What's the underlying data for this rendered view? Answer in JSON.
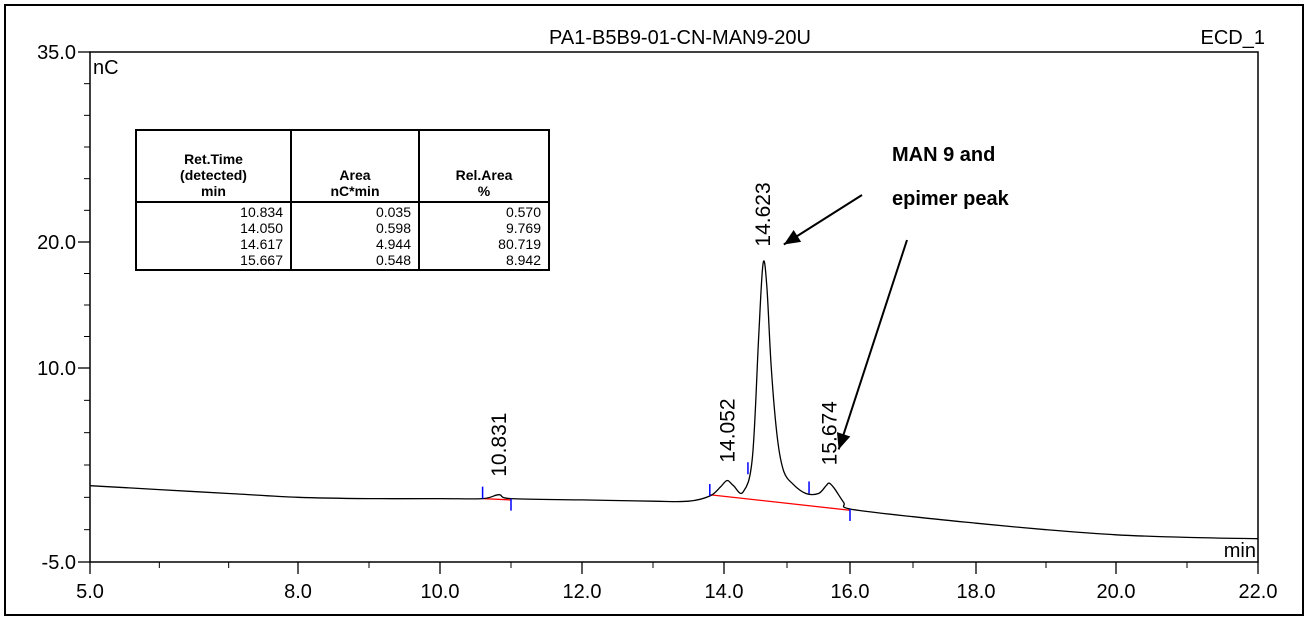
{
  "chart_data": {
    "type": "line",
    "title": "PA1-B5B9-01-CN-MAN9-20U",
    "channel": "ECD_1",
    "xlabel": "min",
    "ylabel": "nC",
    "xlim": [
      5.0,
      22.0
    ],
    "ylim": [
      -5.0,
      35.0
    ],
    "x_ticks": [
      5.0,
      8.0,
      10.0,
      12.0,
      14.0,
      16.0,
      18.0,
      20.0,
      22.0
    ],
    "x_tick_labels": [
      "5.0",
      "8.0",
      "10.0",
      "12.0",
      "14.0",
      "16.0",
      "18.0",
      "20.0",
      "22.0"
    ],
    "y_ticks": [
      -5.0,
      10.0,
      20.0,
      35.0
    ],
    "y_tick_labels": [
      "-5.0",
      "10.0",
      "20.0",
      "35.0"
    ],
    "trace": {
      "x": [
        5.0,
        6.0,
        7.0,
        8.0,
        9.0,
        10.0,
        10.6,
        10.83,
        11.0,
        12.0,
        13.0,
        13.5,
        13.8,
        13.95,
        14.05,
        14.15,
        14.3,
        14.45,
        14.55,
        14.62,
        14.68,
        14.75,
        14.85,
        14.95,
        15.1,
        15.3,
        15.5,
        15.62,
        15.67,
        15.75,
        15.9,
        16.0,
        17.0,
        18.0,
        19.0,
        20.0,
        21.0,
        22.0
      ],
      "y": [
        0.9,
        0.6,
        0.3,
        0.0,
        -0.1,
        -0.1,
        -0.1,
        0.2,
        -0.1,
        -0.2,
        -0.3,
        -0.3,
        0.1,
        0.8,
        1.3,
        0.9,
        0.4,
        3.0,
        12.5,
        18.3,
        16.5,
        10.0,
        4.5,
        2.0,
        1.0,
        0.3,
        0.3,
        0.9,
        1.1,
        0.7,
        -0.4,
        -0.9,
        -1.5,
        -2.0,
        -2.5,
        -2.9,
        -3.1,
        -3.2
      ]
    },
    "peaks": [
      {
        "label": "10.831",
        "x": 10.831
      },
      {
        "label": "14.052",
        "x": 14.052
      },
      {
        "label": "14.623",
        "x": 14.623
      },
      {
        "label": "15.674",
        "x": 15.674
      }
    ],
    "baseline_segments": [
      {
        "x": [
          10.6,
          11.0
        ],
        "y": [
          -0.1,
          -0.2
        ]
      },
      {
        "x": [
          13.8,
          16.0
        ],
        "y": [
          0.2,
          -1.0
        ]
      }
    ],
    "integration_markers": [
      10.6,
      11.0,
      13.8,
      14.38,
      15.35,
      16.0
    ],
    "annotation": {
      "line1": "MAN 9 and",
      "line2": "epimer peak",
      "arrow_targets": [
        {
          "x": 14.95,
          "y": 19.8
        },
        {
          "x": 15.82,
          "y": 3.7
        }
      ]
    },
    "table": {
      "headers": [
        [
          "Ret.Time",
          "(detected)",
          "min"
        ],
        [
          "Area",
          "nC*min"
        ],
        [
          "Rel.Area",
          "%"
        ]
      ],
      "rows": [
        [
          "10.834",
          "0.035",
          "0.570"
        ],
        [
          "14.050",
          "0.598",
          "9.769"
        ],
        [
          "14.617",
          "4.944",
          "80.719"
        ],
        [
          "15.667",
          "0.548",
          "8.942"
        ]
      ]
    },
    "colors": {
      "trace": "#000000",
      "baseline": "#ff0000",
      "marker": "#0000ff"
    }
  }
}
